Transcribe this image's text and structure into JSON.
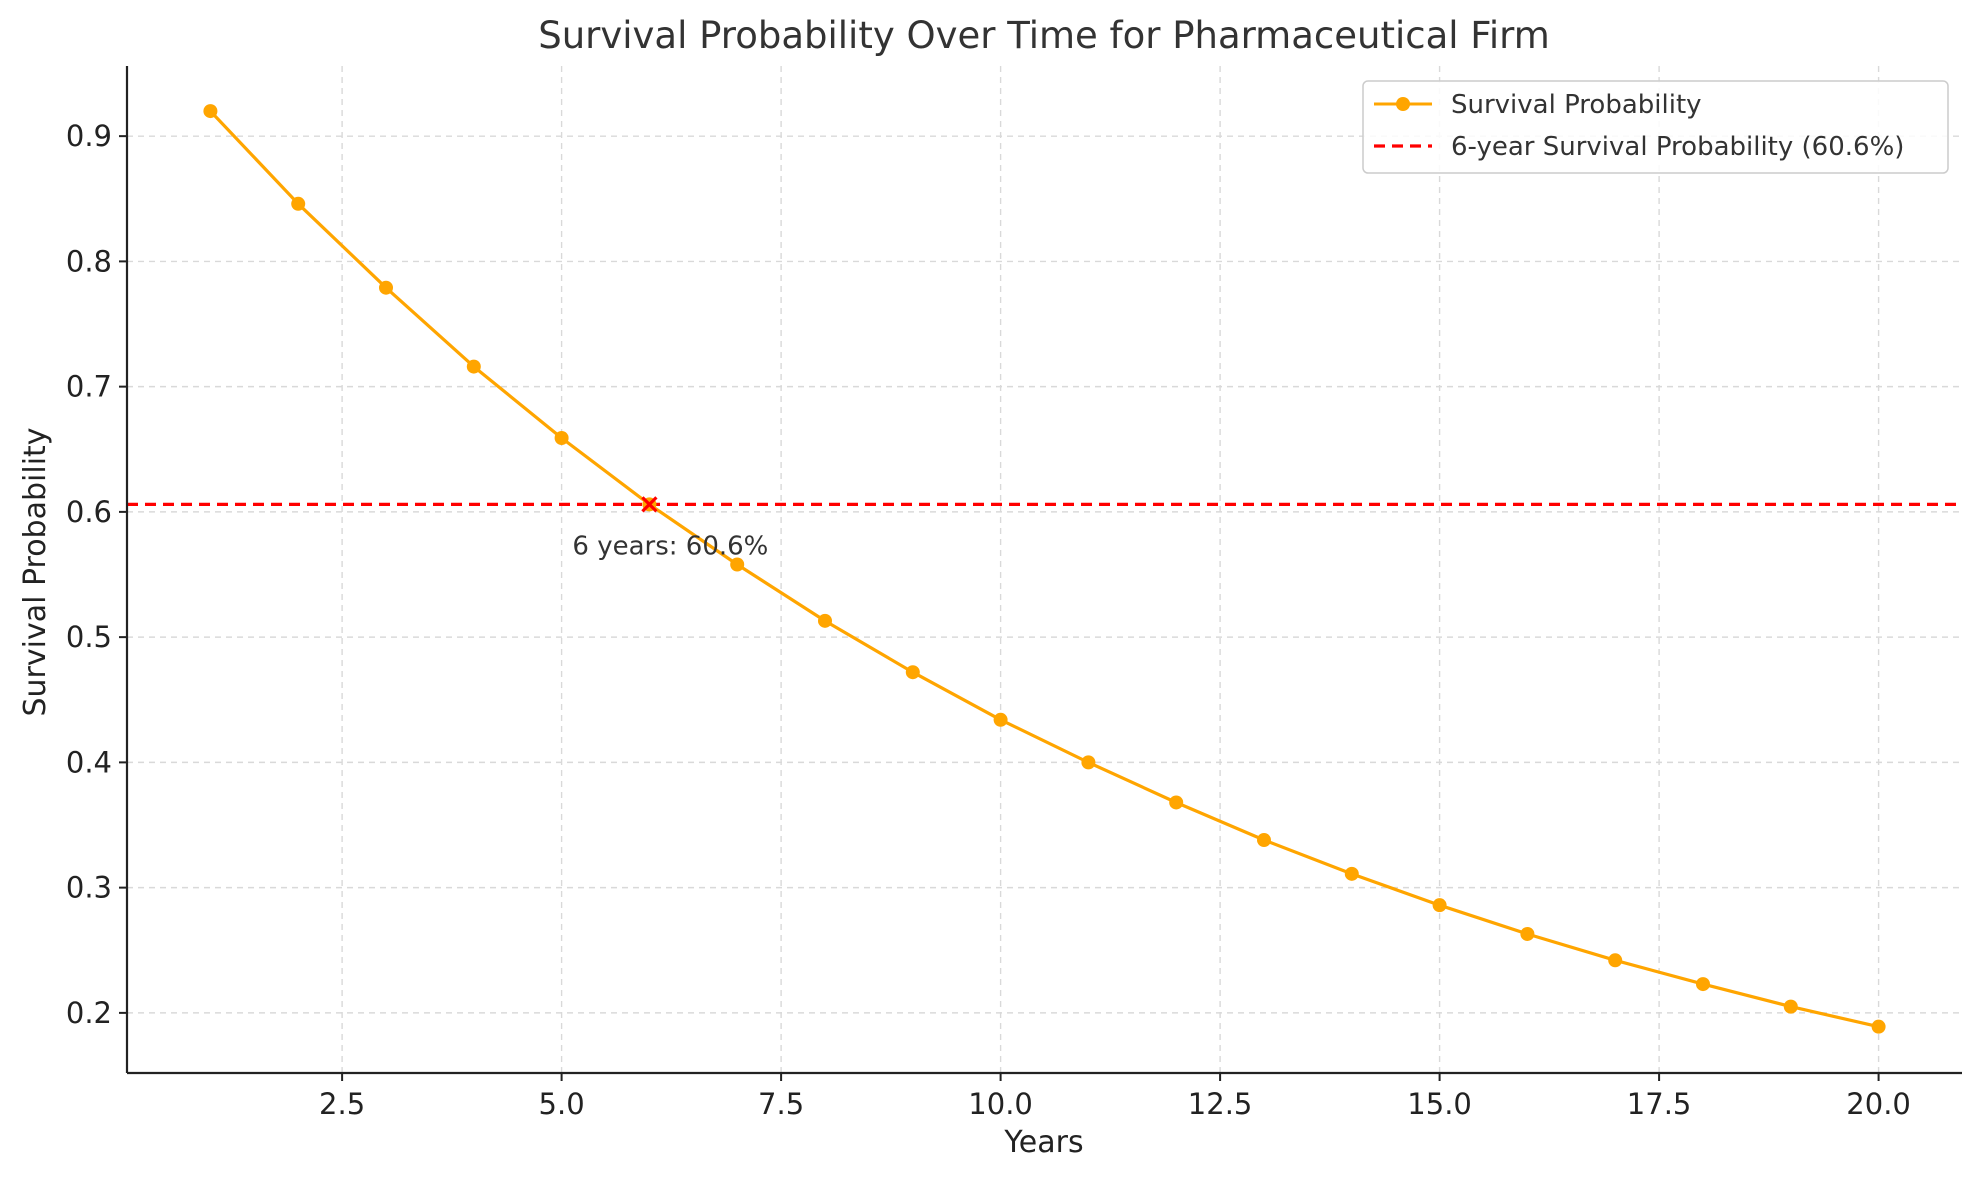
{
  "chart_data": {
    "type": "line",
    "title": "Survival Probability Over Time for Pharmaceutical Firm",
    "xlabel": "Years",
    "ylabel": "Survival Probability",
    "xlim": [
      0.05,
      20.95
    ],
    "ylim": [
      0.152,
      0.956
    ],
    "xticks": [
      2.5,
      5.0,
      7.5,
      10.0,
      12.5,
      15.0,
      17.5,
      20.0
    ],
    "xtick_labels": [
      "2.5",
      "5.0",
      "7.5",
      "10.0",
      "12.5",
      "15.0",
      "17.5",
      "20.0"
    ],
    "yticks": [
      0.2,
      0.3,
      0.4,
      0.5,
      0.6,
      0.7,
      0.8,
      0.9
    ],
    "ytick_labels": [
      "0.2",
      "0.3",
      "0.4",
      "0.5",
      "0.6",
      "0.7",
      "0.8",
      "0.9"
    ],
    "grid": true,
    "legend_position": "top-right",
    "series": [
      {
        "name": "Survival Probability",
        "color": "#FFA500",
        "marker": "circle",
        "x": [
          1,
          2,
          3,
          4,
          5,
          6,
          7,
          8,
          9,
          10,
          11,
          12,
          13,
          14,
          15,
          16,
          17,
          18,
          19,
          20
        ],
        "values": [
          0.92,
          0.846,
          0.779,
          0.716,
          0.659,
          0.606,
          0.558,
          0.513,
          0.472,
          0.434,
          0.4,
          0.368,
          0.338,
          0.311,
          0.286,
          0.263,
          0.242,
          0.223,
          0.205,
          0.189
        ]
      }
    ],
    "reference_line": {
      "name": "6-year Survival Probability (60.6%)",
      "color": "#FF0000",
      "style": "dashed",
      "y": 0.606
    },
    "highlight_point": {
      "x": 6,
      "y": 0.606,
      "color": "#FF0000",
      "marker": "x",
      "label": "6 years: 60.6%"
    }
  }
}
